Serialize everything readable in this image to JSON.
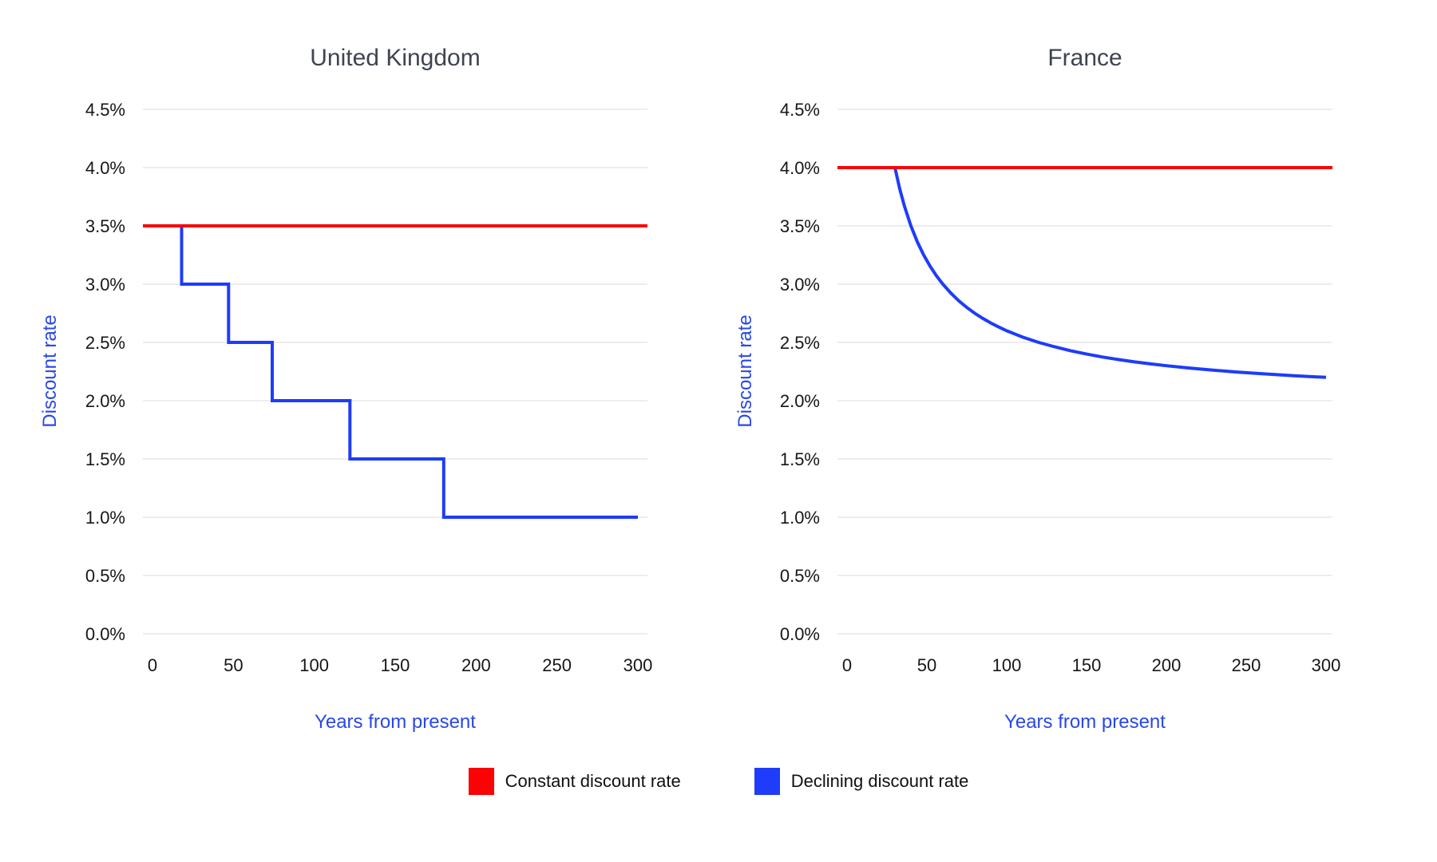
{
  "page": {
    "background": "#ffffff"
  },
  "colors": {
    "constant_line": "#f90305",
    "declining_line": "#1e3cfa",
    "axis_label_blue": "#2947e8",
    "title_gray": "#3e4450",
    "tick_text": "#161616",
    "gridline": "#ededed"
  },
  "legend": {
    "items": [
      {
        "label": "Constant discount rate",
        "color": "#f90305"
      },
      {
        "label": "Declining discount rate",
        "color": "#1e3cfa"
      }
    ]
  },
  "chart_data": [
    {
      "type": "line",
      "id": "uk",
      "title": "United Kingdom",
      "xlabel": "Years from present",
      "ylabel": "Discount rate",
      "xlim": [
        0,
        300
      ],
      "ylim": [
        0,
        4.5
      ],
      "grid": "horizontal",
      "legend_position": "bottom-shared",
      "x_ticks": [
        0,
        50,
        100,
        150,
        200,
        250,
        300
      ],
      "y_tick_labels": [
        "0.0%",
        "0.5%",
        "1.0%",
        "1.5%",
        "2.0%",
        "2.5%",
        "3.0%",
        "3.5%",
        "4.0%",
        "4.5%"
      ],
      "series": [
        {
          "name": "Constant discount rate",
          "color": "#f90305",
          "style": "hline",
          "value": 3.5
        },
        {
          "name": "Declining discount rate",
          "color": "#1e3cfa",
          "style": "step",
          "points": [
            [
              0,
              3.5
            ],
            [
              18,
              3.5
            ],
            [
              18,
              3.0
            ],
            [
              47,
              3.0
            ],
            [
              47,
              2.5
            ],
            [
              74,
              2.5
            ],
            [
              74,
              2.0
            ],
            [
              122,
              2.0
            ],
            [
              122,
              1.5
            ],
            [
              180,
              1.5
            ],
            [
              180,
              1.0
            ],
            [
              300,
              1.0
            ]
          ]
        }
      ]
    },
    {
      "type": "line",
      "id": "france",
      "title": "France",
      "xlabel": "Years from present",
      "ylabel": "Discount rate",
      "xlim": [
        0,
        300
      ],
      "ylim": [
        0,
        4.5
      ],
      "grid": "horizontal",
      "legend_position": "bottom-shared",
      "x_ticks": [
        0,
        50,
        100,
        150,
        200,
        250,
        300
      ],
      "y_tick_labels": [
        "0.0%",
        "0.5%",
        "1.0%",
        "1.5%",
        "2.0%",
        "2.5%",
        "3.0%",
        "3.5%",
        "4.0%",
        "4.5%"
      ],
      "series": [
        {
          "name": "Constant discount rate",
          "color": "#f90305",
          "style": "hline",
          "value": 4.0
        },
        {
          "name": "Declining discount rate",
          "color": "#1e3cfa",
          "style": "curve",
          "points": [
            [
              30,
              4.0
            ],
            [
              33,
              3.818
            ],
            [
              36,
              3.667
            ],
            [
              40,
              3.5
            ],
            [
              44,
              3.364
            ],
            [
              48,
              3.25
            ],
            [
              52,
              3.154
            ],
            [
              56,
              3.071
            ],
            [
              60,
              3.0
            ],
            [
              65,
              2.923
            ],
            [
              70,
              2.857
            ],
            [
              75,
              2.8
            ],
            [
              80,
              2.75
            ],
            [
              85,
              2.706
            ],
            [
              90,
              2.667
            ],
            [
              95,
              2.632
            ],
            [
              100,
              2.6
            ],
            [
              110,
              2.545
            ],
            [
              120,
              2.5
            ],
            [
              130,
              2.462
            ],
            [
              140,
              2.429
            ],
            [
              150,
              2.4
            ],
            [
              160,
              2.375
            ],
            [
              170,
              2.353
            ],
            [
              180,
              2.333
            ],
            [
              190,
              2.316
            ],
            [
              200,
              2.3
            ],
            [
              215,
              2.279
            ],
            [
              230,
              2.261
            ],
            [
              245,
              2.245
            ],
            [
              260,
              2.231
            ],
            [
              280,
              2.214
            ],
            [
              300,
              2.2
            ]
          ]
        }
      ]
    }
  ]
}
